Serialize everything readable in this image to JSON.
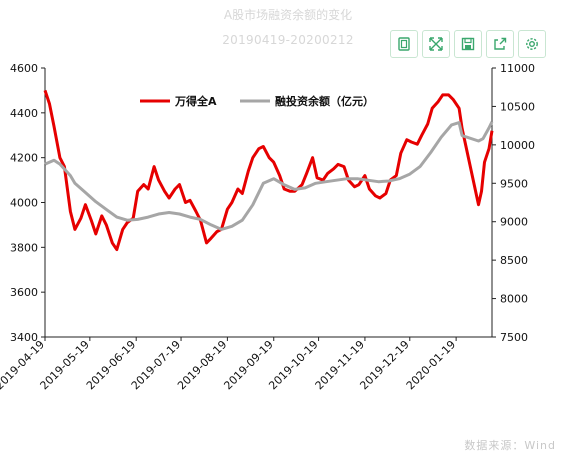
{
  "header": {
    "title": "A股市场融资余额的变化",
    "subtitle": "20190419-20200212"
  },
  "toolbar": {
    "icons": [
      "data-view-icon",
      "zoom-icon",
      "save-image-icon",
      "export-icon",
      "settings-icon"
    ]
  },
  "footer": {
    "source": "数据来源：Wind"
  },
  "colors": {
    "series_primary": "#e60000",
    "series_secondary": "#a6a6a6",
    "toolbar_accent": "#3aa76d"
  },
  "chart_data": {
    "type": "line",
    "legend_position": "top-center",
    "grid": false,
    "x_tick_labels": [
      "2019-04-19",
      "2019-05-19",
      "2019-06-19",
      "2019-07-19",
      "2019-08-19",
      "2019-09-19",
      "2019-10-19",
      "2019-11-19",
      "2019-12-19",
      "2020-01-19"
    ],
    "x_range": [
      "2019-04-19",
      "2020-02-12"
    ],
    "y_left": {
      "ylim": [
        3400,
        4600
      ],
      "ticks": [
        3400,
        3600,
        3800,
        4000,
        4200,
        4400,
        4600
      ]
    },
    "y_right": {
      "ylim": [
        7500,
        11000
      ],
      "ticks": [
        7500,
        8000,
        8500,
        9000,
        9500,
        10000,
        10500,
        11000
      ]
    },
    "series": [
      {
        "name": "万得全A",
        "axis": "left",
        "points": [
          [
            "2019-04-19",
            4500
          ],
          [
            "2019-04-22",
            4440
          ],
          [
            "2019-04-25",
            4340
          ],
          [
            "2019-04-29",
            4200
          ],
          [
            "2019-05-02",
            4160
          ],
          [
            "2019-05-06",
            3960
          ],
          [
            "2019-05-09",
            3880
          ],
          [
            "2019-05-13",
            3930
          ],
          [
            "2019-05-16",
            3990
          ],
          [
            "2019-05-20",
            3920
          ],
          [
            "2019-05-23",
            3860
          ],
          [
            "2019-05-27",
            3940
          ],
          [
            "2019-05-30",
            3900
          ],
          [
            "2019-06-03",
            3820
          ],
          [
            "2019-06-06",
            3790
          ],
          [
            "2019-06-10",
            3880
          ],
          [
            "2019-06-13",
            3910
          ],
          [
            "2019-06-17",
            3930
          ],
          [
            "2019-06-20",
            4050
          ],
          [
            "2019-06-24",
            4080
          ],
          [
            "2019-06-27",
            4060
          ],
          [
            "2019-07-01",
            4160
          ],
          [
            "2019-07-04",
            4100
          ],
          [
            "2019-07-08",
            4050
          ],
          [
            "2019-07-11",
            4020
          ],
          [
            "2019-07-15",
            4060
          ],
          [
            "2019-07-18",
            4080
          ],
          [
            "2019-07-22",
            4000
          ],
          [
            "2019-07-25",
            4010
          ],
          [
            "2019-07-29",
            3960
          ],
          [
            "2019-08-01",
            3920
          ],
          [
            "2019-08-05",
            3820
          ],
          [
            "2019-08-08",
            3840
          ],
          [
            "2019-08-12",
            3870
          ],
          [
            "2019-08-15",
            3880
          ],
          [
            "2019-08-19",
            3970
          ],
          [
            "2019-08-22",
            4000
          ],
          [
            "2019-08-26",
            4060
          ],
          [
            "2019-08-29",
            4040
          ],
          [
            "2019-09-02",
            4140
          ],
          [
            "2019-09-05",
            4200
          ],
          [
            "2019-09-09",
            4240
          ],
          [
            "2019-09-12",
            4250
          ],
          [
            "2019-09-16",
            4200
          ],
          [
            "2019-09-19",
            4180
          ],
          [
            "2019-09-23",
            4120
          ],
          [
            "2019-09-26",
            4060
          ],
          [
            "2019-09-30",
            4050
          ],
          [
            "2019-10-03",
            4050
          ],
          [
            "2019-10-08",
            4080
          ],
          [
            "2019-10-11",
            4130
          ],
          [
            "2019-10-15",
            4200
          ],
          [
            "2019-10-18",
            4110
          ],
          [
            "2019-10-22",
            4100
          ],
          [
            "2019-10-25",
            4130
          ],
          [
            "2019-10-29",
            4150
          ],
          [
            "2019-11-01",
            4170
          ],
          [
            "2019-11-05",
            4160
          ],
          [
            "2019-11-08",
            4100
          ],
          [
            "2019-11-12",
            4070
          ],
          [
            "2019-11-15",
            4080
          ],
          [
            "2019-11-19",
            4120
          ],
          [
            "2019-11-22",
            4060
          ],
          [
            "2019-11-26",
            4030
          ],
          [
            "2019-11-29",
            4020
          ],
          [
            "2019-12-03",
            4040
          ],
          [
            "2019-12-06",
            4100
          ],
          [
            "2019-12-10",
            4120
          ],
          [
            "2019-12-13",
            4220
          ],
          [
            "2019-12-17",
            4280
          ],
          [
            "2019-12-20",
            4270
          ],
          [
            "2019-12-24",
            4260
          ],
          [
            "2019-12-27",
            4300
          ],
          [
            "2019-12-31",
            4350
          ],
          [
            "2020-01-03",
            4420
          ],
          [
            "2020-01-07",
            4450
          ],
          [
            "2020-01-10",
            4480
          ],
          [
            "2020-01-14",
            4480
          ],
          [
            "2020-01-17",
            4460
          ],
          [
            "2020-01-21",
            4420
          ],
          [
            "2020-01-23",
            4330
          ],
          [
            "2020-02-03",
            3990
          ],
          [
            "2020-02-05",
            4050
          ],
          [
            "2020-02-07",
            4180
          ],
          [
            "2020-02-10",
            4240
          ],
          [
            "2020-02-12",
            4320
          ]
        ]
      },
      {
        "name": "融投资余额（亿元）",
        "axis": "right",
        "points": [
          [
            "2019-04-19",
            9750
          ],
          [
            "2019-04-25",
            9800
          ],
          [
            "2019-04-29",
            9750
          ],
          [
            "2019-05-06",
            9600
          ],
          [
            "2019-05-09",
            9500
          ],
          [
            "2019-05-16",
            9380
          ],
          [
            "2019-05-23",
            9260
          ],
          [
            "2019-05-30",
            9160
          ],
          [
            "2019-06-06",
            9060
          ],
          [
            "2019-06-13",
            9020
          ],
          [
            "2019-06-20",
            9030
          ],
          [
            "2019-06-27",
            9060
          ],
          [
            "2019-07-04",
            9100
          ],
          [
            "2019-07-11",
            9120
          ],
          [
            "2019-07-18",
            9100
          ],
          [
            "2019-07-25",
            9060
          ],
          [
            "2019-08-01",
            9030
          ],
          [
            "2019-08-08",
            8960
          ],
          [
            "2019-08-15",
            8900
          ],
          [
            "2019-08-22",
            8940
          ],
          [
            "2019-08-29",
            9020
          ],
          [
            "2019-09-05",
            9220
          ],
          [
            "2019-09-12",
            9500
          ],
          [
            "2019-09-19",
            9560
          ],
          [
            "2019-09-26",
            9480
          ],
          [
            "2019-10-03",
            9420
          ],
          [
            "2019-10-10",
            9440
          ],
          [
            "2019-10-17",
            9500
          ],
          [
            "2019-10-24",
            9520
          ],
          [
            "2019-10-31",
            9540
          ],
          [
            "2019-11-07",
            9560
          ],
          [
            "2019-11-14",
            9560
          ],
          [
            "2019-11-21",
            9540
          ],
          [
            "2019-11-28",
            9520
          ],
          [
            "2019-12-05",
            9530
          ],
          [
            "2019-12-12",
            9560
          ],
          [
            "2019-12-19",
            9620
          ],
          [
            "2019-12-26",
            9720
          ],
          [
            "2020-01-02",
            9900
          ],
          [
            "2020-01-09",
            10100
          ],
          [
            "2020-01-16",
            10260
          ],
          [
            "2020-01-21",
            10290
          ],
          [
            "2020-01-23",
            10120
          ],
          [
            "2020-02-03",
            10050
          ],
          [
            "2020-02-06",
            10080
          ],
          [
            "2020-02-10",
            10220
          ],
          [
            "2020-02-12",
            10300
          ]
        ]
      }
    ]
  }
}
